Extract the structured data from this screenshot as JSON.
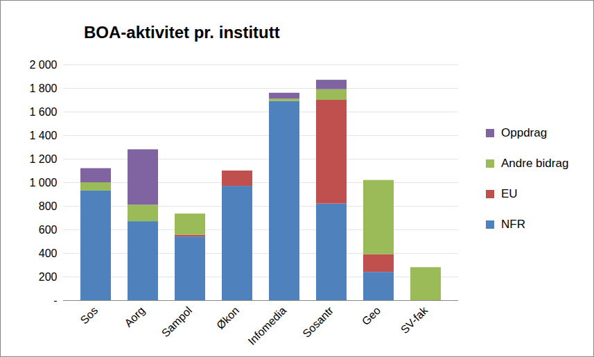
{
  "chart_data": {
    "type": "bar",
    "title": "BOA-aktivitet pr. institutt",
    "categories": [
      "Sos",
      "Aorg",
      "Sampol",
      "Økon",
      "Infomedia",
      "Sosantr",
      "Geo",
      "SV-fak"
    ],
    "series": [
      {
        "name": "NFR",
        "color": "#4f81bd",
        "values": [
          930,
          670,
          540,
          970,
          1690,
          820,
          240,
          0
        ]
      },
      {
        "name": "EU",
        "color": "#c0504d",
        "values": [
          0,
          0,
          15,
          130,
          0,
          880,
          150,
          0
        ]
      },
      {
        "name": "Andre bidrag",
        "color": "#9bbb59",
        "values": [
          70,
          140,
          180,
          0,
          20,
          90,
          630,
          280
        ]
      },
      {
        "name": "Oppdrag",
        "color": "#8064a2",
        "values": [
          120,
          470,
          0,
          0,
          50,
          80,
          0,
          0
        ]
      }
    ],
    "stacked": true,
    "ylim": [
      0,
      2000
    ],
    "yticks": [
      {
        "value": 0,
        "label": "-"
      },
      200,
      400,
      600,
      800,
      {
        "value": 1000,
        "label": "1 000"
      },
      {
        "value": 1200,
        "label": "1 200"
      },
      {
        "value": 1400,
        "label": "1 400"
      },
      {
        "value": 1600,
        "label": "1 600"
      },
      {
        "value": 1800,
        "label": "1 800"
      },
      {
        "value": 2000,
        "label": "2 000"
      }
    ],
    "grid": true,
    "legend": "right"
  }
}
